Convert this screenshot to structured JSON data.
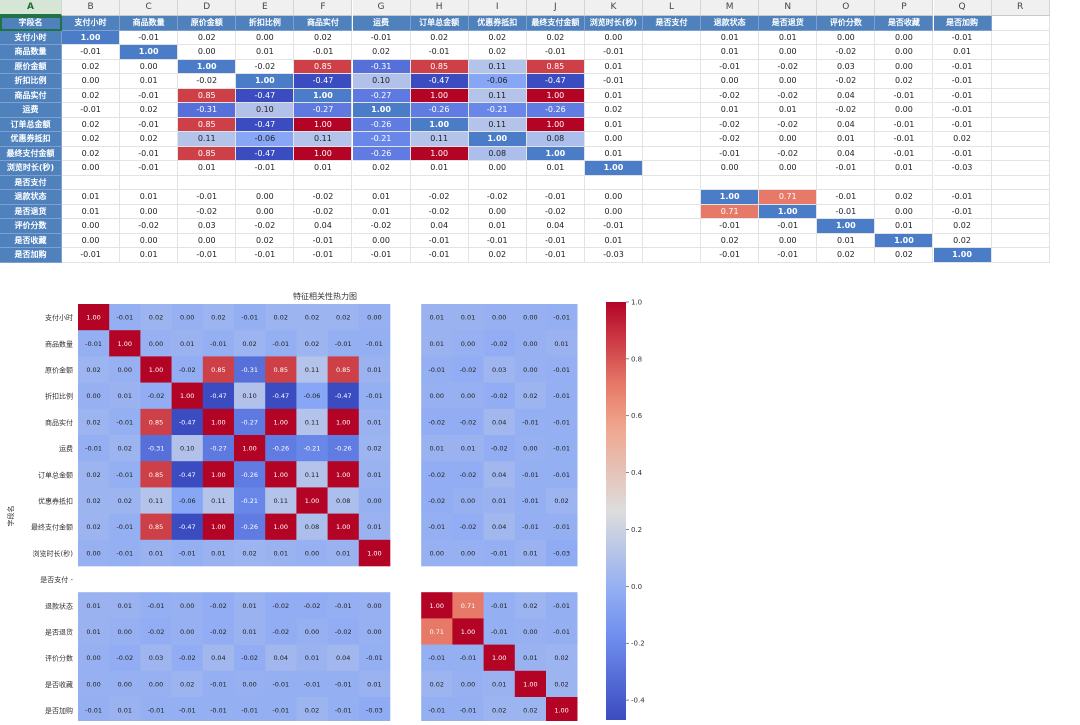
{
  "sheet": {
    "columns": [
      "A",
      "B",
      "C",
      "D",
      "E",
      "F",
      "G",
      "H",
      "I",
      "J",
      "K",
      "L",
      "M",
      "N",
      "O",
      "P",
      "Q",
      "R"
    ],
    "active_column": "A",
    "header_row": [
      "字段名",
      "支付小时",
      "商品数量",
      "原价金额",
      "折扣比例",
      "商品实付",
      "运费",
      "订单总金额",
      "优惠券抵扣",
      "最终支付金额",
      "浏览时长(秒)",
      "是否支付",
      "退款状态",
      "是否退货",
      "评价分数",
      "是否收藏",
      "是否加购"
    ],
    "rows": [
      [
        "支付小时",
        "1.00",
        "-0.01",
        "0.02",
        "0.00",
        "0.02",
        "-0.01",
        "0.02",
        "0.02",
        "0.02",
        "0.00",
        "",
        "0.01",
        "0.01",
        "0.00",
        "0.00",
        "-0.01"
      ],
      [
        "商品数量",
        "-0.01",
        "1.00",
        "0.00",
        "0.01",
        "-0.01",
        "0.02",
        "-0.01",
        "0.02",
        "-0.01",
        "-0.01",
        "",
        "0.01",
        "0.00",
        "-0.02",
        "0.00",
        "0.01"
      ],
      [
        "原价金额",
        "0.02",
        "0.00",
        "1.00",
        "-0.02",
        "0.85",
        "-0.31",
        "0.85",
        "0.11",
        "0.85",
        "0.01",
        "",
        "-0.01",
        "-0.02",
        "0.03",
        "0.00",
        "-0.01"
      ],
      [
        "折扣比例",
        "0.00",
        "0.01",
        "-0.02",
        "1.00",
        "-0.47",
        "0.10",
        "-0.47",
        "-0.06",
        "-0.47",
        "-0.01",
        "",
        "0.00",
        "0.00",
        "-0.02",
        "0.02",
        "-0.01"
      ],
      [
        "商品实付",
        "0.02",
        "-0.01",
        "0.85",
        "-0.47",
        "1.00",
        "-0.27",
        "1.00",
        "0.11",
        "1.00",
        "0.01",
        "",
        "-0.02",
        "-0.02",
        "0.04",
        "-0.01",
        "-0.01"
      ],
      [
        "运费",
        "-0.01",
        "0.02",
        "-0.31",
        "0.10",
        "-0.27",
        "1.00",
        "-0.26",
        "-0.21",
        "-0.26",
        "0.02",
        "",
        "0.01",
        "0.01",
        "-0.02",
        "0.00",
        "-0.01"
      ],
      [
        "订单总金额",
        "0.02",
        "-0.01",
        "0.85",
        "-0.47",
        "1.00",
        "-0.26",
        "1.00",
        "0.11",
        "1.00",
        "0.01",
        "",
        "-0.02",
        "-0.02",
        "0.04",
        "-0.01",
        "-0.01"
      ],
      [
        "优惠券抵扣",
        "0.02",
        "0.02",
        "0.11",
        "-0.06",
        "0.11",
        "-0.21",
        "0.11",
        "1.00",
        "0.08",
        "0.00",
        "",
        "-0.02",
        "0.00",
        "0.01",
        "-0.01",
        "0.02"
      ],
      [
        "最终支付金额",
        "0.02",
        "-0.01",
        "0.85",
        "-0.47",
        "1.00",
        "-0.26",
        "1.00",
        "0.08",
        "1.00",
        "0.01",
        "",
        "-0.01",
        "-0.02",
        "0.04",
        "-0.01",
        "-0.01"
      ],
      [
        "浏览时长(秒)",
        "0.00",
        "-0.01",
        "0.01",
        "-0.01",
        "0.01",
        "0.02",
        "0.01",
        "0.00",
        "0.01",
        "1.00",
        "",
        "0.00",
        "0.00",
        "-0.01",
        "0.01",
        "-0.03"
      ],
      [
        "是否支付",
        "",
        "",
        "",
        "",
        "",
        "",
        "",
        "",
        "",
        "",
        "",
        "",
        "",
        "",
        "",
        ""
      ],
      [
        "退款状态",
        "0.01",
        "0.01",
        "-0.01",
        "0.00",
        "-0.02",
        "0.01",
        "-0.02",
        "-0.02",
        "-0.01",
        "0.00",
        "",
        "1.00",
        "0.71",
        "-0.01",
        "0.02",
        "-0.01"
      ],
      [
        "是否退货",
        "0.01",
        "0.00",
        "-0.02",
        "0.00",
        "-0.02",
        "0.01",
        "-0.02",
        "0.00",
        "-0.02",
        "0.00",
        "",
        "0.71",
        "1.00",
        "-0.01",
        "0.00",
        "-0.01"
      ],
      [
        "评价分数",
        "0.00",
        "-0.02",
        "0.03",
        "-0.02",
        "0.04",
        "-0.02",
        "0.04",
        "0.01",
        "0.04",
        "-0.01",
        "",
        "-0.01",
        "-0.01",
        "1.00",
        "0.01",
        "0.02"
      ],
      [
        "是否收藏",
        "0.00",
        "0.00",
        "0.00",
        "0.02",
        "-0.01",
        "0.00",
        "-0.01",
        "-0.01",
        "-0.01",
        "0.01",
        "",
        "0.02",
        "0.00",
        "0.01",
        "1.00",
        "0.02"
      ],
      [
        "是否加购",
        "-0.01",
        "0.01",
        "-0.01",
        "-0.01",
        "-0.01",
        "-0.01",
        "-0.01",
        "0.02",
        "-0.01",
        "-0.03",
        "",
        "-0.01",
        "-0.01",
        "0.02",
        "0.02",
        "1.00"
      ]
    ]
  },
  "chart_data": {
    "type": "heatmap",
    "title": "特征相关性热力图",
    "ylabel": "字段名",
    "xlabel": "",
    "colorbar_ticks": [
      "1.0",
      "0.8",
      "0.6",
      "0.4",
      "0.2",
      "0.0",
      "-0.2",
      "-0.4"
    ],
    "colorbar_range": [
      -0.47,
      1.0
    ],
    "colormap": "coolwarm",
    "colors": {
      "low": "#3b4cc0",
      "mid": "#dddddd",
      "high": "#b40426"
    },
    "missing_row": "是否支付"
  }
}
